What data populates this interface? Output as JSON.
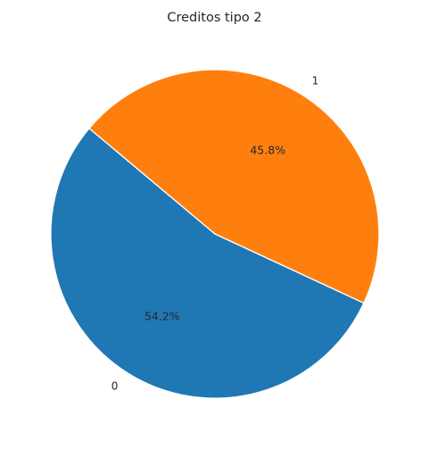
{
  "chart_data": {
    "type": "pie",
    "title": "Creditos tipo 2",
    "categories": [
      "0",
      "1"
    ],
    "values": [
      54.2,
      45.8
    ],
    "percent_labels": [
      "54.2%",
      "45.8%"
    ],
    "colors": [
      "#1f77b4",
      "#ff7f0e"
    ],
    "start_angle_deg": 140,
    "direction": "counterclockwise",
    "edge_color": "#ffffff",
    "legend": "none"
  }
}
